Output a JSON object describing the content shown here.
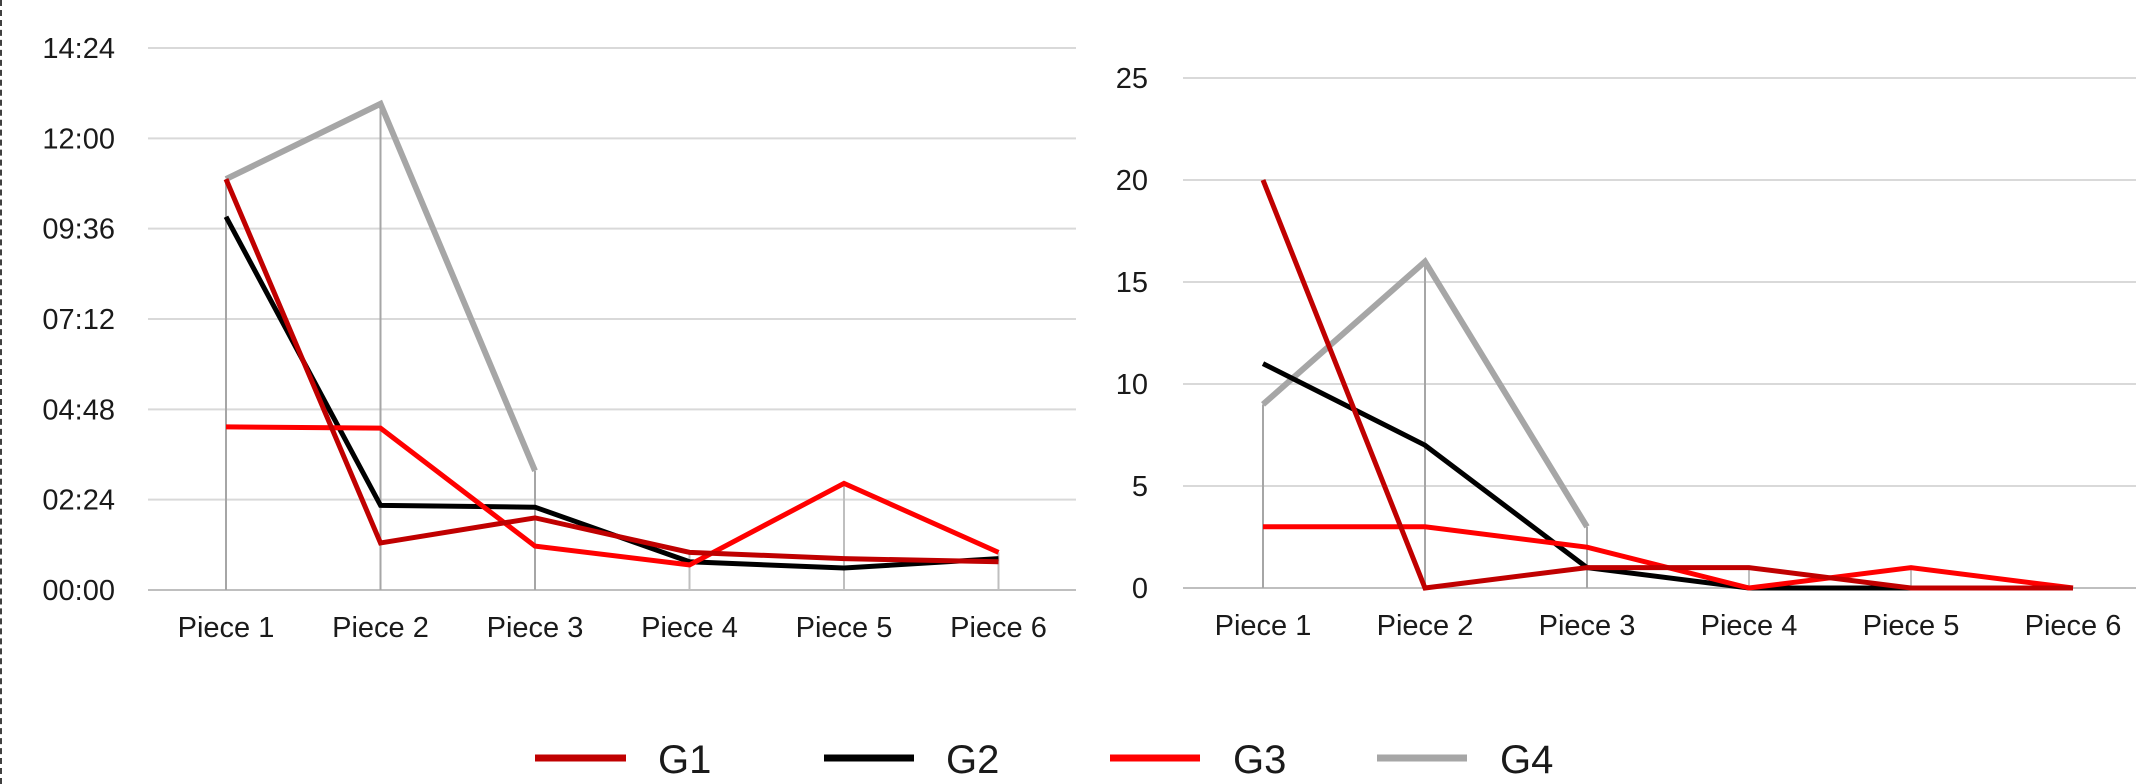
{
  "chart_data": [
    {
      "type": "line",
      "title": "",
      "xlabel": "",
      "ylabel": "",
      "y_unit": "mm:ss",
      "categories": [
        "Piece 1",
        "Piece 2",
        "Piece 3",
        "Piece 4",
        "Piece 5",
        "Piece 6"
      ],
      "y_ticks": [
        "00:00",
        "02:24",
        "04:48",
        "07:12",
        "09:36",
        "12:00",
        "14:24"
      ],
      "ylim": [
        "00:00",
        "14:24"
      ],
      "grid": "horizontal",
      "drop_lines": "G4",
      "series": [
        {
          "name": "G1",
          "values": [
            "10:55",
            "01:15",
            "01:55",
            "01:00",
            "00:50",
            "00:45"
          ]
        },
        {
          "name": "G2",
          "values": [
            "09:55",
            "02:15",
            "02:12",
            "00:45",
            "00:35",
            "00:50"
          ]
        },
        {
          "name": "G3",
          "values": [
            "04:20",
            "04:18",
            "01:10",
            "00:40",
            "02:50",
            "01:00"
          ]
        },
        {
          "name": "G4",
          "values": [
            "10:55",
            "12:55",
            "03:10",
            null,
            null,
            null
          ]
        }
      ]
    },
    {
      "type": "line",
      "title": "",
      "xlabel": "",
      "ylabel": "",
      "categories": [
        "Piece 1",
        "Piece 2",
        "Piece 3",
        "Piece 4",
        "Piece 5",
        "Piece 6"
      ],
      "y_ticks": [
        "0",
        "5",
        "10",
        "15",
        "20",
        "25"
      ],
      "ylim": [
        0,
        25
      ],
      "grid": "horizontal",
      "drop_lines": "G4",
      "series": [
        {
          "name": "G1",
          "values": [
            20,
            0,
            1,
            1,
            0,
            0
          ]
        },
        {
          "name": "G2",
          "values": [
            11,
            7,
            1,
            0,
            0,
            0
          ]
        },
        {
          "name": "G3",
          "values": [
            3,
            3,
            2,
            0,
            1,
            0
          ]
        },
        {
          "name": "G4",
          "values": [
            9,
            16,
            3,
            null,
            null,
            null
          ]
        }
      ]
    }
  ],
  "legend": {
    "placement": "bottom",
    "items": [
      {
        "name": "G1",
        "color": "#c00000"
      },
      {
        "name": "G2",
        "color": "#000000"
      },
      {
        "name": "G3",
        "color": "#ff0000"
      },
      {
        "name": "G4",
        "color": "#a6a6a6"
      }
    ]
  },
  "colors": {
    "G1": "#c00000",
    "G2": "#000000",
    "G3": "#ff0000",
    "G4": "#a6a6a6",
    "gridline": "#d9d9d9",
    "axis": "#bfbfbf",
    "border": "#404040"
  }
}
